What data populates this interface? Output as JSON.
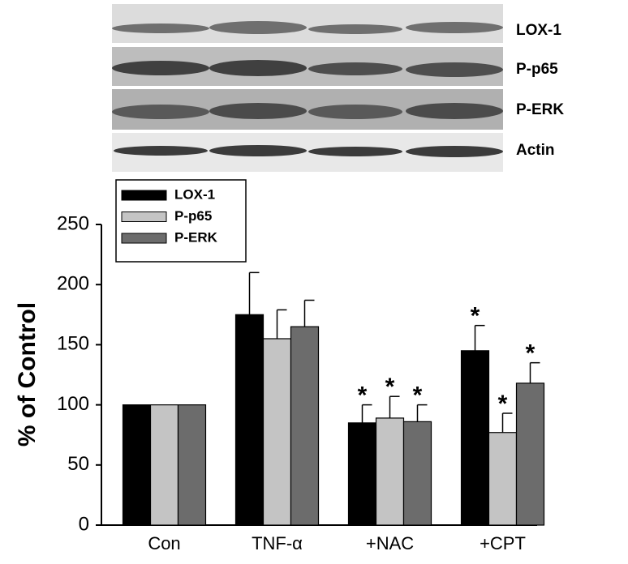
{
  "blot": {
    "labels": [
      "LOX-1",
      "P-p65",
      "P-ERK",
      "Actin"
    ]
  },
  "chart_data": {
    "type": "bar",
    "y_label": "% of Control",
    "categories": [
      "Con",
      "TNF-α",
      "+NAC",
      "+CPT"
    ],
    "series": [
      {
        "name": "LOX-1",
        "color": "#000000",
        "values": [
          100,
          175,
          85,
          145
        ],
        "errors": [
          0,
          35,
          15,
          21
        ],
        "markers": [
          null,
          null,
          "*",
          "*"
        ]
      },
      {
        "name": "P-p65",
        "color": "#c4c4c4",
        "values": [
          100,
          155,
          89,
          77
        ],
        "errors": [
          0,
          24,
          18,
          16
        ],
        "markers": [
          null,
          null,
          "*",
          "*"
        ]
      },
      {
        "name": "P-ERK",
        "color": "#6c6c6c",
        "values": [
          100,
          165,
          86,
          118
        ],
        "errors": [
          0,
          22,
          14,
          17
        ],
        "markers": [
          null,
          null,
          "*",
          "*"
        ]
      }
    ],
    "ylim": [
      0,
      250
    ],
    "yticks": [
      0,
      50,
      100,
      150,
      200,
      250
    ],
    "grid": false,
    "legend": "upper left"
  }
}
